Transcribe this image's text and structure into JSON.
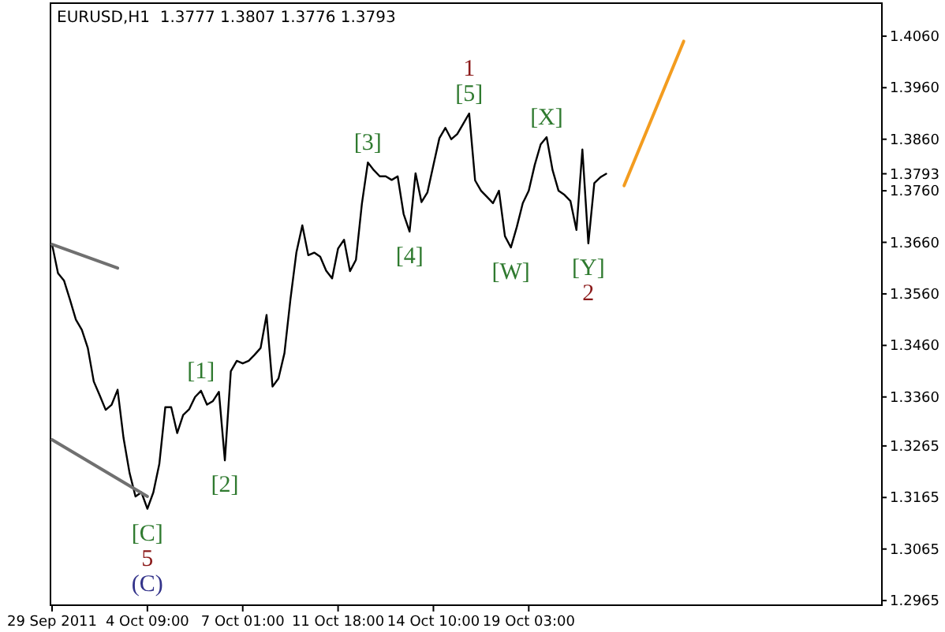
{
  "chart_data": {
    "type": "line",
    "title": "EURUSD,H1  1.3777 1.3807 1.3776 1.3793",
    "categories": [
      "29 Sep 2011",
      null,
      null,
      null,
      null,
      null,
      null,
      null,
      null,
      null,
      null,
      null,
      null,
      null,
      null,
      null,
      "4 Oct 09:00",
      null,
      null,
      null,
      null,
      null,
      null,
      null,
      null,
      null,
      null,
      null,
      null,
      null,
      null,
      null,
      "7 Oct 01:00",
      null,
      null,
      null,
      null,
      null,
      null,
      null,
      null,
      null,
      null,
      null,
      null,
      null,
      null,
      null,
      "11 Oct 18:00",
      null,
      null,
      null,
      null,
      null,
      null,
      null,
      null,
      null,
      null,
      null,
      null,
      null,
      null,
      null,
      "14 Oct 10:00",
      null,
      null,
      null,
      null,
      null,
      null,
      null,
      null,
      null,
      null,
      null,
      null,
      null,
      null,
      null,
      "19 Oct 03:00",
      null,
      null,
      null,
      null,
      null,
      null,
      null,
      null,
      null,
      null,
      null,
      null,
      null,
      null,
      null,
      null,
      null,
      null,
      null,
      null,
      null,
      null,
      null,
      null,
      null,
      null,
      null,
      null,
      null,
      null,
      null,
      null,
      null,
      null,
      null,
      null,
      null,
      null,
      null,
      null,
      null,
      null,
      null,
      null,
      null,
      null,
      null,
      null,
      null,
      null,
      null,
      null,
      null,
      null,
      null,
      null,
      null,
      null,
      null
    ],
    "ylim": [
      1.2956,
      1.4124
    ],
    "yticks": [
      {
        "value": 1.406,
        "label": "1.4060"
      },
      {
        "value": 1.396,
        "label": "1.3960"
      },
      {
        "value": 1.386,
        "label": "1.3860"
      },
      {
        "value": 1.3793,
        "label": "1.3793"
      },
      {
        "value": 1.376,
        "label": "1.3760"
      },
      {
        "value": 1.366,
        "label": "1.3660"
      },
      {
        "value": 1.356,
        "label": "1.3560"
      },
      {
        "value": 1.346,
        "label": "1.3460"
      },
      {
        "value": 1.336,
        "label": "1.3360"
      },
      {
        "value": 1.3265,
        "label": "1.3265"
      },
      {
        "value": 1.3165,
        "label": "1.3165"
      },
      {
        "value": 1.3065,
        "label": "1.3065"
      },
      {
        "value": 1.2965,
        "label": "1.2965"
      }
    ],
    "grid": false,
    "series": [
      {
        "color": "#000000",
        "values": [
          1.3656,
          1.36,
          1.3586,
          1.3549,
          1.351,
          1.349,
          1.3455,
          1.339,
          1.3363,
          1.3335,
          1.3345,
          1.3374,
          1.328,
          1.3213,
          1.3167,
          1.3175,
          1.3143,
          1.3175,
          1.323,
          1.334,
          1.334,
          1.329,
          1.3325,
          1.3336,
          1.336,
          1.3372,
          1.3345,
          1.3352,
          1.337,
          1.3237,
          1.341,
          1.343,
          1.3425,
          1.343,
          1.3442,
          1.3455,
          1.3519,
          1.338,
          1.3396,
          1.3445,
          1.3549,
          1.364,
          1.3693,
          1.3635,
          1.364,
          1.3632,
          1.3605,
          1.359,
          1.3648,
          1.3665,
          1.3604,
          1.3626,
          1.3735,
          1.3815,
          1.38,
          1.3788,
          1.3788,
          1.3781,
          1.3788,
          1.3715,
          1.3681,
          1.3794,
          1.3738,
          1.3757,
          1.381,
          1.3862,
          1.3882,
          1.386,
          1.387,
          1.389,
          1.391,
          1.378,
          1.376,
          1.3748,
          1.3736,
          1.376,
          1.3672,
          1.365,
          1.369,
          1.3736,
          1.376,
          1.381,
          1.385,
          1.3864,
          1.38,
          1.376,
          1.3752,
          1.374,
          1.3684,
          1.384,
          1.3658,
          1.3775,
          1.3786,
          1.3793,
          null,
          null,
          null,
          null,
          null,
          null,
          null,
          null,
          null,
          null,
          null,
          null,
          null,
          null,
          null,
          null,
          null,
          null,
          null,
          null,
          null,
          null,
          null,
          null,
          null,
          null,
          null,
          null,
          null,
          null,
          null,
          null,
          null,
          null,
          null,
          null,
          null,
          null,
          null,
          null,
          null,
          null,
          null,
          null,
          null,
          null
        ]
      },
      {
        "color": "#707070",
        "values": [
          1.3656,
          null,
          null,
          null,
          null,
          null,
          null,
          null,
          null,
          null,
          null,
          1.361,
          null,
          null,
          null,
          null,
          null,
          null,
          null,
          null,
          null,
          null,
          null,
          null,
          null,
          null,
          null,
          null,
          null,
          null,
          null,
          null,
          null,
          null,
          null,
          null,
          null,
          null,
          null,
          null,
          null,
          null,
          null,
          null,
          null,
          null,
          null,
          null,
          null,
          null,
          null,
          null,
          null,
          null,
          null,
          null,
          null,
          null,
          null,
          null,
          null,
          null,
          null,
          null,
          null,
          null,
          null,
          null,
          null,
          null,
          null,
          null,
          null,
          null,
          null,
          null,
          null,
          null,
          null,
          null,
          null,
          null,
          null,
          null,
          null,
          null,
          null,
          null,
          null,
          null,
          null,
          null,
          null,
          null,
          null,
          null,
          null,
          null,
          null,
          null,
          null,
          null,
          null,
          null,
          null,
          null,
          null,
          null,
          null,
          null,
          null,
          null,
          null,
          null,
          null,
          null,
          null,
          null,
          null,
          null,
          null,
          null,
          null,
          null,
          null,
          null,
          null,
          null,
          null,
          null,
          null,
          null,
          null,
          null,
          null,
          null,
          null,
          null,
          null,
          null
        ]
      },
      {
        "color": "#707070",
        "values": [
          1.3277,
          null,
          null,
          null,
          null,
          null,
          null,
          null,
          null,
          null,
          null,
          null,
          null,
          null,
          null,
          null,
          1.3167,
          null,
          null,
          null,
          null,
          null,
          null,
          null,
          null,
          null,
          null,
          null,
          null,
          null,
          null,
          null,
          null,
          null,
          null,
          null,
          null,
          null,
          null,
          null,
          null,
          null,
          null,
          null,
          null,
          null,
          null,
          null,
          null,
          null,
          null,
          null,
          null,
          null,
          null,
          null,
          null,
          null,
          null,
          null,
          null,
          null,
          null,
          null,
          null,
          null,
          null,
          null,
          null,
          null,
          null,
          null,
          null,
          null,
          null,
          null,
          null,
          null,
          null,
          null,
          null,
          null,
          null,
          null,
          null,
          null,
          null,
          null,
          null,
          null,
          null,
          null,
          null,
          null,
          null,
          null,
          null,
          null,
          null,
          null,
          null,
          null,
          null,
          null,
          null,
          null,
          null,
          null,
          null,
          null,
          null,
          null,
          null,
          null,
          null,
          null,
          null,
          null,
          null,
          null,
          null,
          null,
          null,
          null,
          null,
          null,
          null,
          null,
          null,
          null,
          null,
          null,
          null,
          null,
          null,
          null,
          null,
          null,
          null,
          null
        ]
      },
      {
        "color": "#f39c1f",
        "values": [
          null,
          null,
          null,
          null,
          null,
          null,
          null,
          null,
          null,
          null,
          null,
          null,
          null,
          null,
          null,
          null,
          null,
          null,
          null,
          null,
          null,
          null,
          null,
          null,
          null,
          null,
          null,
          null,
          null,
          null,
          null,
          null,
          null,
          null,
          null,
          null,
          null,
          null,
          null,
          null,
          null,
          null,
          null,
          null,
          null,
          null,
          null,
          null,
          null,
          null,
          null,
          null,
          null,
          null,
          null,
          null,
          null,
          null,
          null,
          null,
          null,
          null,
          null,
          null,
          null,
          null,
          null,
          null,
          null,
          null,
          null,
          null,
          null,
          null,
          null,
          null,
          null,
          null,
          null,
          null,
          null,
          null,
          null,
          null,
          null,
          null,
          null,
          null,
          null,
          null,
          null,
          null,
          null,
          null,
          null,
          null,
          1.377,
          null,
          null,
          null,
          null,
          null,
          null,
          null,
          null,
          null,
          1.405,
          null,
          null,
          null,
          null,
          null,
          null,
          null,
          null,
          null,
          null,
          null,
          null,
          null,
          null,
          null,
          null,
          null,
          null,
          null,
          null,
          null,
          null,
          null,
          null,
          null,
          null,
          null,
          null,
          null,
          null,
          null,
          null,
          null
        ]
      }
    ],
    "annotations": [
      {
        "text": "[5]",
        "y": 1.391
      },
      {
        "text": "1",
        "y": 1.391
      },
      {
        "text": "[3]",
        "y": 1.3815
      },
      {
        "text": "[4]",
        "y": 1.3681
      },
      {
        "text": "[X]",
        "y": 1.3864
      },
      {
        "text": "[W]",
        "y": 1.365
      },
      {
        "text": "[Y]",
        "y": 1.3658
      },
      {
        "text": "2",
        "y": 1.3658
      },
      {
        "text": "[1]",
        "y": 1.3372
      },
      {
        "text": "[2]",
        "y": 1.3237
      },
      {
        "text": "[C]",
        "y": 1.3143
      },
      {
        "text": "5",
        "y": 1.3143
      },
      {
        "text": "(C)",
        "y": 1.3143
      }
    ]
  }
}
